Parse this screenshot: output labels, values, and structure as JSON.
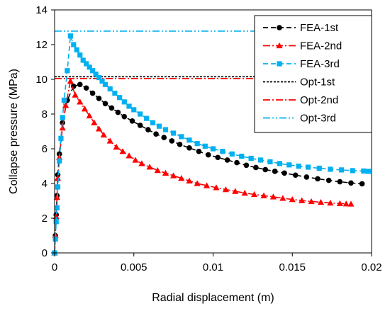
{
  "chart_data": {
    "type": "line",
    "xlabel": "Radial displacement (m)",
    "ylabel": "Collapse pressure (MPa)",
    "xlim": [
      0,
      0.02
    ],
    "ylim": [
      0,
      14
    ],
    "x_ticks": [
      "0",
      "0.005",
      "0.01",
      "0.015",
      "0.02"
    ],
    "y_ticks": [
      "0",
      "2",
      "4",
      "6",
      "8",
      "10",
      "12",
      "14"
    ],
    "legend_position": "top-right",
    "grid": false,
    "series": [
      {
        "name": "FEA-1st",
        "color": "#000000",
        "line": "dashed",
        "marker": "circle",
        "x": [
          0,
          5e-05,
          0.0001,
          0.00015,
          0.0002,
          0.0003,
          0.0005,
          0.0008,
          0.0012,
          0.0016,
          0.002,
          0.0024,
          0.0028,
          0.0032,
          0.0036,
          0.004,
          0.0044,
          0.0049,
          0.0054,
          0.0059,
          0.0064,
          0.0069,
          0.0074,
          0.0079,
          0.0085,
          0.0091,
          0.0097,
          0.0103,
          0.0109,
          0.0115,
          0.0121,
          0.0127,
          0.0133,
          0.0139,
          0.0145,
          0.0152,
          0.0159,
          0.0166,
          0.0173,
          0.018,
          0.0187,
          0.0194
        ],
        "y": [
          0,
          1.0,
          2.2,
          3.3,
          4.5,
          5.7,
          7.5,
          8.8,
          9.6,
          9.7,
          9.5,
          9.2,
          8.9,
          8.6,
          8.35,
          8.1,
          7.85,
          7.6,
          7.35,
          7.1,
          6.85,
          6.65,
          6.45,
          6.25,
          6.05,
          5.85,
          5.65,
          5.5,
          5.35,
          5.2,
          5.05,
          4.92,
          4.8,
          4.7,
          4.6,
          4.48,
          4.37,
          4.27,
          4.18,
          4.1,
          4.03,
          3.98
        ]
      },
      {
        "name": "FEA-2nd",
        "color": "#ff0000",
        "line": "dash-dot",
        "marker": "triangle",
        "x": [
          0,
          5e-05,
          0.0001,
          0.00015,
          0.0002,
          0.0003,
          0.0005,
          0.0007,
          0.001,
          0.0013,
          0.0016,
          0.0019,
          0.0022,
          0.0025,
          0.0028,
          0.0031,
          0.0035,
          0.0039,
          0.0043,
          0.0047,
          0.0051,
          0.0055,
          0.006,
          0.0065,
          0.007,
          0.0075,
          0.008,
          0.0085,
          0.009,
          0.0096,
          0.0102,
          0.0108,
          0.0114,
          0.012,
          0.0126,
          0.0132,
          0.0138,
          0.0144,
          0.015,
          0.0156,
          0.0162,
          0.0168,
          0.0174,
          0.018,
          0.0184,
          0.0187
        ],
        "y": [
          0,
          1.0,
          2.1,
          3.2,
          4.3,
          5.5,
          7.2,
          8.5,
          9.9,
          9.1,
          8.7,
          8.3,
          7.9,
          7.5,
          7.15,
          6.8,
          6.45,
          6.1,
          5.85,
          5.6,
          5.35,
          5.15,
          4.95,
          4.75,
          4.6,
          4.45,
          4.3,
          4.15,
          4.0,
          3.88,
          3.76,
          3.65,
          3.55,
          3.45,
          3.37,
          3.3,
          3.23,
          3.15,
          3.08,
          3.02,
          2.96,
          2.92,
          2.88,
          2.85,
          2.83,
          2.82
        ]
      },
      {
        "name": "FEA-3rd",
        "color": "#00b0f0",
        "line": "dashed",
        "marker": "square",
        "x": [
          0,
          5e-05,
          0.0001,
          0.00015,
          0.0002,
          0.0003,
          0.0004,
          0.0005,
          0.0006,
          0.0008,
          0.001,
          0.0012,
          0.0014,
          0.0016,
          0.0018,
          0.002,
          0.0022,
          0.0024,
          0.0026,
          0.0028,
          0.003,
          0.0032,
          0.0035,
          0.0038,
          0.0041,
          0.0044,
          0.0047,
          0.005,
          0.0054,
          0.0058,
          0.0062,
          0.0066,
          0.007,
          0.0075,
          0.008,
          0.0085,
          0.009,
          0.0095,
          0.01,
          0.0106,
          0.0112,
          0.0118,
          0.0124,
          0.013,
          0.0136,
          0.0142,
          0.0148,
          0.0154,
          0.016,
          0.0167,
          0.0174,
          0.0181,
          0.0188,
          0.0195,
          0.0198
        ],
        "y": [
          0,
          0.8,
          1.8,
          2.6,
          3.8,
          5.3,
          6.6,
          7.8,
          8.8,
          10.5,
          12.5,
          12.0,
          11.7,
          11.4,
          11.1,
          10.9,
          10.7,
          10.5,
          10.3,
          10.1,
          9.9,
          9.7,
          9.45,
          9.2,
          8.95,
          8.7,
          8.45,
          8.25,
          8.0,
          7.75,
          7.5,
          7.3,
          7.1,
          6.9,
          6.7,
          6.5,
          6.3,
          6.15,
          6.0,
          5.85,
          5.7,
          5.57,
          5.45,
          5.35,
          5.25,
          5.15,
          5.07,
          5.0,
          4.94,
          4.88,
          4.82,
          4.78,
          4.74,
          4.72,
          4.7
        ]
      },
      {
        "name": "Opt-1st",
        "color": "#000000",
        "line": "short-dashed",
        "marker": "none",
        "x": [
          0,
          0.02
        ],
        "y": [
          10.15,
          10.15
        ]
      },
      {
        "name": "Opt-2nd",
        "color": "#ff0000",
        "line": "dash-dot",
        "marker": "none",
        "x": [
          0,
          0.02
        ],
        "y": [
          10.05,
          10.05
        ]
      },
      {
        "name": "Opt-3rd",
        "color": "#00b0f0",
        "line": "dash-dot-dot",
        "marker": "none",
        "x": [
          0,
          0.02
        ],
        "y": [
          12.78,
          12.78
        ]
      }
    ]
  }
}
